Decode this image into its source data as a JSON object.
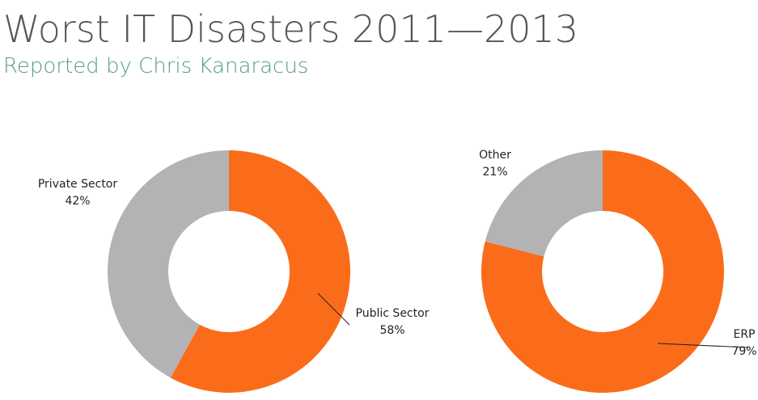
{
  "header": {
    "title": "Worst IT Disasters 2011—2013",
    "subtitle": "Reported by Chris Kanaracus"
  },
  "chart_data": [
    {
      "type": "donut",
      "categories": [
        "Public Sector",
        "Private Sector"
      ],
      "values": [
        58,
        42
      ],
      "value_labels": [
        "58%",
        "42%"
      ],
      "colors": [
        "#fb6c1a",
        "#b3b3b5"
      ]
    },
    {
      "type": "donut",
      "categories": [
        "ERP",
        "Other"
      ],
      "values": [
        79,
        21
      ],
      "value_labels": [
        "79%",
        "21%"
      ],
      "colors": [
        "#fb6c1a",
        "#b3b3b5"
      ]
    }
  ]
}
